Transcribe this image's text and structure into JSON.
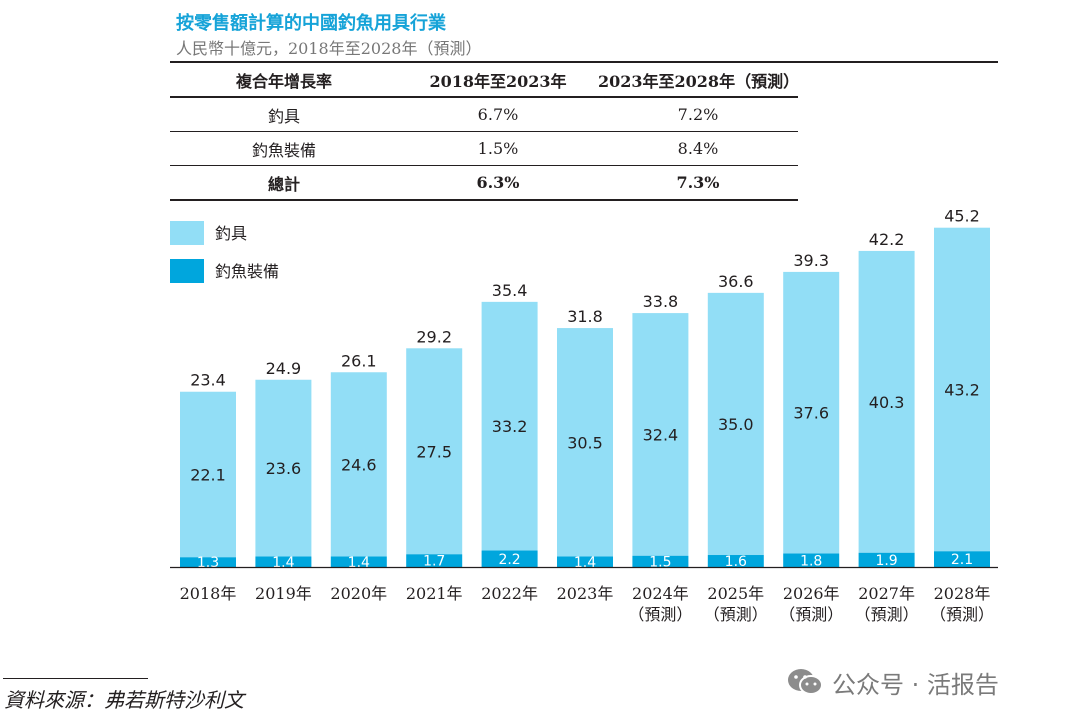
{
  "title": "按零售額計算的中國釣魚用具行業",
  "subtitle": "人民幣十億元，2018年至2028年（預測）",
  "cagr_table": {
    "headers": [
      "複合年增長率",
      "2018年至2023年",
      "2023年至2028年（預測）"
    ],
    "rows": [
      [
        "釣具",
        "6.7%",
        "7.2%"
      ],
      [
        "釣魚裝備",
        "1.5%",
        "8.4%"
      ]
    ],
    "total": [
      "總計",
      "6.3%",
      "7.3%"
    ]
  },
  "chart_data": {
    "type": "bar",
    "stacked": true,
    "categories": [
      [
        "2018年"
      ],
      [
        "2019年"
      ],
      [
        "2020年"
      ],
      [
        "2021年"
      ],
      [
        "2022年"
      ],
      [
        "2023年"
      ],
      [
        "2024年",
        "（預測）"
      ],
      [
        "2025年",
        "（預測）"
      ],
      [
        "2026年",
        "（預測）"
      ],
      [
        "2027年",
        "（預測）"
      ],
      [
        "2028年",
        "（預測）"
      ]
    ],
    "series": [
      {
        "name": "釣魚裝備",
        "color": "#00a6dd",
        "values": [
          1.3,
          1.4,
          1.4,
          1.7,
          2.2,
          1.4,
          1.5,
          1.6,
          1.8,
          1.9,
          2.1
        ]
      },
      {
        "name": "釣具",
        "color": "#92def6",
        "values": [
          22.1,
          23.6,
          24.6,
          27.5,
          33.2,
          30.5,
          32.4,
          35.0,
          37.6,
          40.3,
          43.2
        ]
      }
    ],
    "totals": [
      23.4,
      24.9,
      26.1,
      29.2,
      35.4,
      31.8,
      33.8,
      36.6,
      39.3,
      42.2,
      45.2
    ],
    "legend": {
      "position": "top-left",
      "order": [
        "釣具",
        "釣魚裝備"
      ]
    },
    "ylim": [
      0,
      45.2
    ],
    "grid": false
  },
  "source": "資料來源：弗若斯特沙利文",
  "watermark": {
    "text": "公众号 · 活报告",
    "icon": "wechat-icon"
  }
}
